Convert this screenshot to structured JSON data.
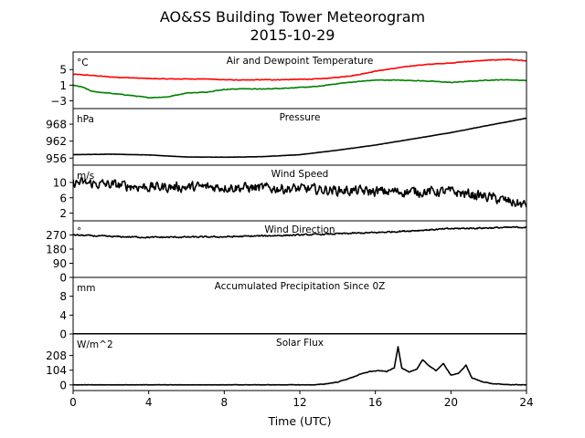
{
  "figure": {
    "title_line1": "AO&SS Building Tower Meteorogram",
    "title_line2": "2015-10-29",
    "xlabel": "Time (UTC)"
  },
  "chart_data": {
    "type": "line",
    "xlim": [
      0,
      24
    ],
    "xticks": [
      0,
      4,
      8,
      12,
      16,
      20,
      24
    ],
    "xlabel": "Time (UTC)",
    "grid": false,
    "panels": [
      {
        "id": "temp",
        "title": "Air and Dewpoint Temperature",
        "unit": "°C",
        "ylim": [
          -5,
          9.5
        ],
        "yticks": [
          -3,
          1,
          5
        ],
        "series": [
          {
            "color": "#ff0000",
            "noise": 0.12,
            "points": [
              [
                0,
                3.8
              ],
              [
                1,
                3.5
              ],
              [
                2,
                3.1
              ],
              [
                3,
                2.9
              ],
              [
                4,
                2.7
              ],
              [
                5,
                2.6
              ],
              [
                6,
                2.6
              ],
              [
                7,
                2.6
              ],
              [
                8,
                2.4
              ],
              [
                9,
                2.3
              ],
              [
                10,
                2.4
              ],
              [
                11,
                2.4
              ],
              [
                12,
                2.5
              ],
              [
                13,
                2.6
              ],
              [
                14,
                3.0
              ],
              [
                15,
                3.6
              ],
              [
                16,
                4.6
              ],
              [
                17,
                5.3
              ],
              [
                18,
                6.0
              ],
              [
                19,
                6.4
              ],
              [
                20,
                6.7
              ],
              [
                21,
                7.1
              ],
              [
                22,
                7.4
              ],
              [
                23,
                7.6
              ],
              [
                24,
                7.2
              ]
            ]
          },
          {
            "color": "#008000",
            "noise": 0.12,
            "points": [
              [
                0,
                1.0
              ],
              [
                0.5,
                0.5
              ],
              [
                1,
                -0.6
              ],
              [
                2,
                -1.1
              ],
              [
                3,
                -1.6
              ],
              [
                4,
                -2.2
              ],
              [
                5,
                -2.0
              ],
              [
                6,
                -1.0
              ],
              [
                7,
                -0.8
              ],
              [
                8,
                -0.1
              ],
              [
                9,
                0.1
              ],
              [
                10,
                0.0
              ],
              [
                11,
                0.2
              ],
              [
                12,
                0.4
              ],
              [
                13,
                0.7
              ],
              [
                14,
                1.4
              ],
              [
                15,
                1.9
              ],
              [
                16,
                2.3
              ],
              [
                17,
                2.3
              ],
              [
                18,
                2.2
              ],
              [
                19,
                2.0
              ],
              [
                20,
                1.7
              ],
              [
                21,
                2.0
              ],
              [
                22,
                2.3
              ],
              [
                23,
                2.4
              ],
              [
                24,
                2.2
              ]
            ]
          }
        ]
      },
      {
        "id": "pres",
        "title": "Pressure",
        "unit": "hPa",
        "ylim": [
          953.5,
          973.5
        ],
        "yticks": [
          956,
          962,
          968
        ],
        "series": [
          {
            "color": "#000000",
            "noise": 0.05,
            "points": [
              [
                0,
                957.2
              ],
              [
                2,
                957.4
              ],
              [
                4,
                957.1
              ],
              [
                6,
                956.4
              ],
              [
                8,
                956.3
              ],
              [
                10,
                956.5
              ],
              [
                12,
                957.2
              ],
              [
                14,
                958.8
              ],
              [
                16,
                960.6
              ],
              [
                18,
                962.8
              ],
              [
                20,
                965.0
              ],
              [
                22,
                967.6
              ],
              [
                24,
                970.1
              ]
            ]
          }
        ]
      },
      {
        "id": "wspd",
        "title": "Wind Speed",
        "unit": "m/s",
        "ylim": [
          0,
          14.5
        ],
        "yticks": [
          2,
          6,
          10
        ],
        "series": [
          {
            "color": "#000000",
            "noise": 2.0,
            "points": [
              [
                0,
                10
              ],
              [
                4,
                8.8
              ],
              [
                8,
                8.8
              ],
              [
                12,
                8.3
              ],
              [
                16,
                7.6
              ],
              [
                20,
                7.6
              ],
              [
                22,
                6.2
              ],
              [
                24,
                4.0
              ]
            ]
          }
        ]
      },
      {
        "id": "wdir",
        "title": "Wind Direction",
        "unit": "°",
        "ylim": [
          0,
          360
        ],
        "yticks": [
          0,
          90,
          180,
          270
        ],
        "series": [
          {
            "color": "#000000",
            "noise": 7,
            "points": [
              [
                0,
                270
              ],
              [
                2,
                260
              ],
              [
                4,
                255
              ],
              [
                8,
                258
              ],
              [
                12,
                270
              ],
              [
                16,
                285
              ],
              [
                20,
                310
              ],
              [
                24,
                320
              ]
            ]
          }
        ]
      },
      {
        "id": "precip",
        "title": "Accumulated Precipitation Since 0Z",
        "unit": "mm",
        "ylim": [
          0,
          12
        ],
        "yticks": [
          0,
          4,
          8
        ],
        "series": [
          {
            "color": "#000000",
            "noise": 0,
            "points": [
              [
                0,
                0
              ],
              [
                24,
                0
              ]
            ]
          }
        ]
      },
      {
        "id": "solar",
        "title": "Solar Flux",
        "unit": "W/m^2",
        "ylim": [
          -40,
          360
        ],
        "yticks": [
          0,
          104,
          208
        ],
        "series": [
          {
            "color": "#000000",
            "noise": 3,
            "points": [
              [
                0,
                0
              ],
              [
                12.8,
                0
              ],
              [
                13.3,
                6
              ],
              [
                14,
                20
              ],
              [
                14.6,
                45
              ],
              [
                15.2,
                75
              ],
              [
                15.7,
                95
              ],
              [
                16.2,
                100
              ],
              [
                16.6,
                95
              ],
              [
                17,
                120
              ],
              [
                17.2,
                270
              ],
              [
                17.4,
                120
              ],
              [
                17.8,
                90
              ],
              [
                18.2,
                110
              ],
              [
                18.5,
                180
              ],
              [
                18.8,
                140
              ],
              [
                19.2,
                100
              ],
              [
                19.6,
                150
              ],
              [
                20,
                70
              ],
              [
                20.4,
                80
              ],
              [
                20.8,
                140
              ],
              [
                21.1,
                50
              ],
              [
                21.6,
                25
              ],
              [
                22.2,
                8
              ],
              [
                23,
                2
              ],
              [
                24,
                0
              ]
            ]
          }
        ]
      }
    ]
  }
}
